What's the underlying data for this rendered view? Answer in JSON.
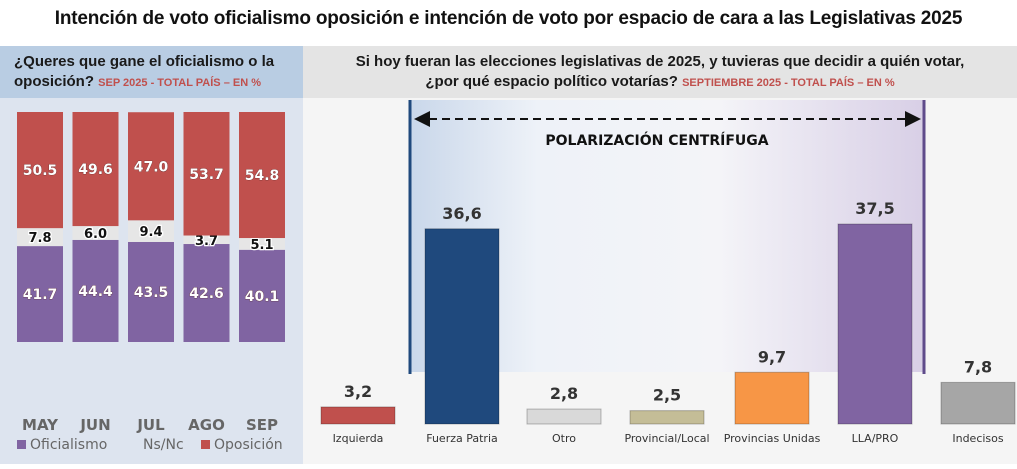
{
  "title": "Intención de voto oficialismo oposición e intención de voto por espacio de cara a las Legislativas 2025",
  "left_header": {
    "question": "¿Queres que gane el oficialismo o la oposición?",
    "note": "SEP 2025 - TOTAL PAÍS – EN %"
  },
  "right_header": {
    "question_line1": "Si hoy fueran las elecciones legislativas de 2025, y tuvieras que decidir a quién votar,",
    "question_line2": "¿por qué espacio político votarías?",
    "note": "SEPTIEMBRE 2025 - TOTAL PAÍS – EN %"
  },
  "chart_data": [
    {
      "type": "bar",
      "stacked": true,
      "title": "¿Queres que gane el oficialismo o la oposición?",
      "categories": [
        "MAY",
        "JUN",
        "JUL",
        "AGO",
        "SEP"
      ],
      "series": [
        {
          "name": "Oficialismo",
          "color": "#8064a2",
          "values": [
            41.7,
            44.4,
            43.5,
            42.6,
            40.1
          ],
          "labels": [
            "41.7",
            "44.4",
            "43.5",
            "42.6",
            "40.1"
          ]
        },
        {
          "name": "Ns/Nc",
          "color": "#e6e6e6",
          "values": [
            7.8,
            6.0,
            9.4,
            3.7,
            5.1
          ],
          "labels": [
            "7.8",
            "6.0",
            "9.4",
            "3.7",
            "5.1"
          ]
        },
        {
          "name": "Oposición",
          "color": "#c0504d",
          "values": [
            50.5,
            49.6,
            47.0,
            53.7,
            54.8
          ],
          "labels": [
            "50.5",
            "49.6",
            "47.0",
            "53.7",
            "54.8"
          ]
        }
      ],
      "legend": [
        "Oficialismo",
        "Ns/Nc",
        "Oposición"
      ],
      "legend_position": "bottom",
      "ylim": [
        0,
        100
      ]
    },
    {
      "type": "bar",
      "title": "Si hoy fueran las elecciones legislativas de 2025, y tuvieras que decidir a quién votar, ¿por qué espacio político votarías?",
      "categories": [
        "Izquierda",
        "Fuerza Patria",
        "Otro",
        "Provincial/Local",
        "Provincias Unidas",
        "LLA/PRO",
        "Indecisos"
      ],
      "values": [
        3.2,
        36.6,
        2.8,
        2.5,
        9.7,
        37.5,
        7.8
      ],
      "labels": [
        "3,2",
        "36,6",
        "2,8",
        "2,5",
        "9,7",
        "37,5",
        "7,8"
      ],
      "colors": [
        "#c0504d",
        "#1f497d",
        "#d9d9d9",
        "#c4bd97",
        "#f79646",
        "#8064a2",
        "#a6a6a6"
      ],
      "annotation": "POLARIZACIÓN CENTRÍFUGA",
      "ylim": [
        0,
        40
      ]
    }
  ]
}
